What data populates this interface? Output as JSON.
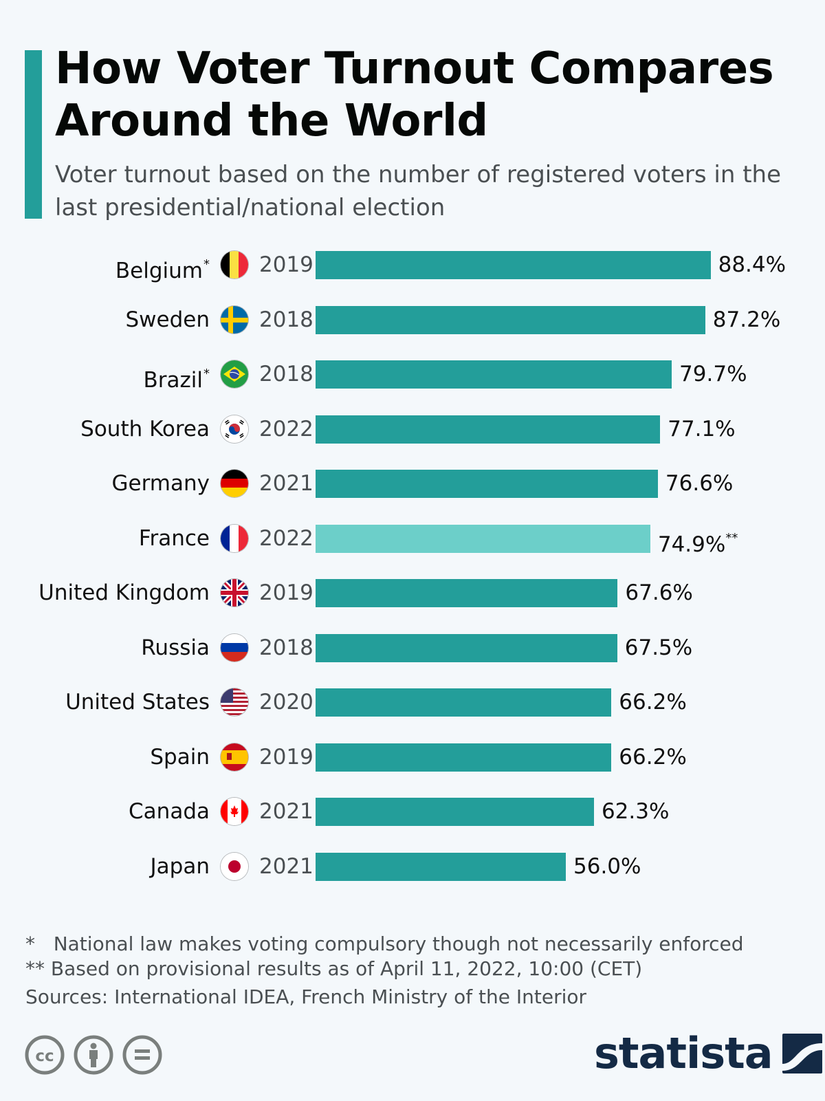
{
  "header": {
    "title": "How Voter Turnout Compares Around the World",
    "subtitle": "Voter turnout based on the number of registered voters in the last presidential/national election"
  },
  "colors": {
    "accent": "#239e9a",
    "bar": "#239e9a",
    "bar_highlight": "#6ccfc9",
    "logo": "#142a45"
  },
  "chart_data": {
    "type": "bar",
    "orientation": "horizontal",
    "title": "How Voter Turnout Compares Around the World",
    "subtitle": "Voter turnout based on the number of registered voters in the last presidential/national election",
    "xlabel": "",
    "ylabel": "",
    "unit": "%",
    "xlim": [
      0,
      100
    ],
    "grid": false,
    "categories": [
      "Belgium",
      "Sweden",
      "Brazil",
      "South Korea",
      "Germany",
      "France",
      "United Kingdom",
      "Russia",
      "United States",
      "Spain",
      "Canada",
      "Japan"
    ],
    "values": [
      88.4,
      87.2,
      79.7,
      77.1,
      76.6,
      74.9,
      67.6,
      67.5,
      66.2,
      66.2,
      62.3,
      56.0
    ],
    "rows": [
      {
        "country": "Belgium",
        "marker": "*",
        "flag": "belgium-flag",
        "year": "2019",
        "value": 88.4,
        "label": "88.4%",
        "label_marker": "",
        "highlight": false
      },
      {
        "country": "Sweden",
        "marker": "",
        "flag": "sweden-flag",
        "year": "2018",
        "value": 87.2,
        "label": "87.2%",
        "label_marker": "",
        "highlight": false
      },
      {
        "country": "Brazil",
        "marker": "*",
        "flag": "brazil-flag",
        "year": "2018",
        "value": 79.7,
        "label": "79.7%",
        "label_marker": "",
        "highlight": false
      },
      {
        "country": "South Korea",
        "marker": "",
        "flag": "south-korea-flag",
        "year": "2022",
        "value": 77.1,
        "label": "77.1%",
        "label_marker": "",
        "highlight": false
      },
      {
        "country": "Germany",
        "marker": "",
        "flag": "germany-flag",
        "year": "2021",
        "value": 76.6,
        "label": "76.6%",
        "label_marker": "",
        "highlight": false
      },
      {
        "country": "France",
        "marker": "",
        "flag": "france-flag",
        "year": "2022",
        "value": 74.9,
        "label": "74.9%",
        "label_marker": "**",
        "highlight": true
      },
      {
        "country": "United Kingdom",
        "marker": "",
        "flag": "uk-flag",
        "year": "2019",
        "value": 67.6,
        "label": "67.6%",
        "label_marker": "",
        "highlight": false
      },
      {
        "country": "Russia",
        "marker": "",
        "flag": "russia-flag",
        "year": "2018",
        "value": 67.5,
        "label": "67.5%",
        "label_marker": "",
        "highlight": false
      },
      {
        "country": "United States",
        "marker": "",
        "flag": "us-flag",
        "year": "2020",
        "value": 66.2,
        "label": "66.2%",
        "label_marker": "",
        "highlight": false
      },
      {
        "country": "Spain",
        "marker": "",
        "flag": "spain-flag",
        "year": "2019",
        "value": 66.2,
        "label": "66.2%",
        "label_marker": "",
        "highlight": false
      },
      {
        "country": "Canada",
        "marker": "",
        "flag": "canada-flag",
        "year": "2021",
        "value": 62.3,
        "label": "62.3%",
        "label_marker": "",
        "highlight": false
      },
      {
        "country": "Japan",
        "marker": "",
        "flag": "japan-flag",
        "year": "2021",
        "value": 56.0,
        "label": "56.0%",
        "label_marker": "",
        "highlight": false
      }
    ]
  },
  "footer": {
    "note1": "*   National law makes voting compulsory though not necessarily enforced",
    "note2": "** Based on provisional results as of April 11, 2022, 10:00 (CET)",
    "sources": "Sources: International IDEA, French Ministry of the Interior",
    "license_icons": [
      "cc-icon",
      "attribution-icon",
      "no-derivatives-icon"
    ],
    "logo_text": "statista"
  }
}
